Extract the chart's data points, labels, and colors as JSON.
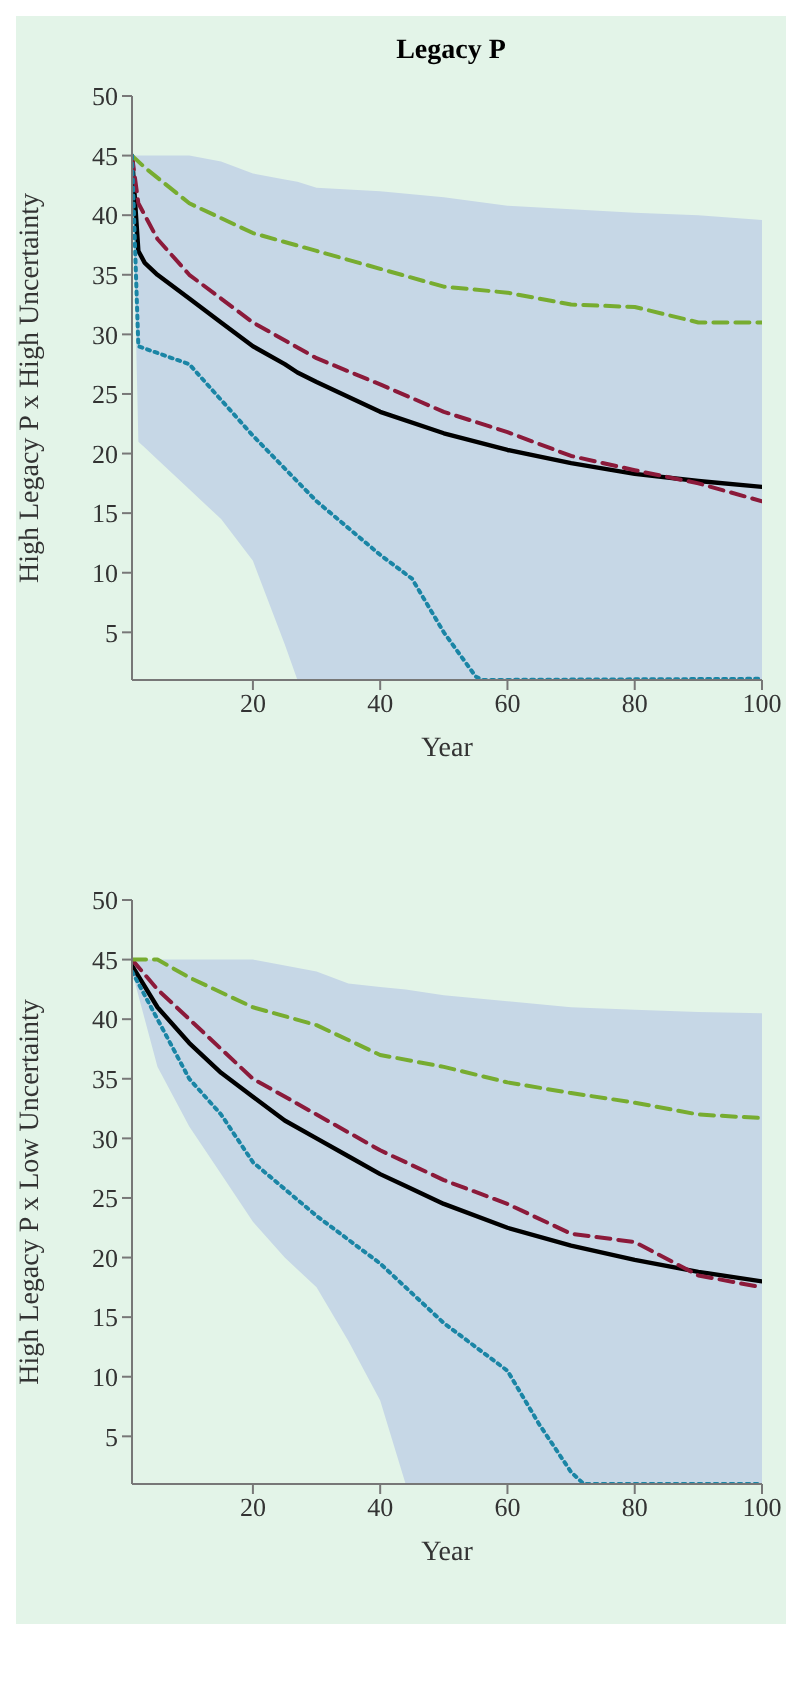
{
  "chart_data": [
    {
      "type": "line",
      "title": "Legacy P",
      "xlabel": "Year",
      "ylabel": "High Legacy P x High Uncertainty",
      "xlim": [
        1,
        100
      ],
      "ylim": [
        1,
        50
      ],
      "xticks": [
        20,
        40,
        60,
        80,
        100
      ],
      "yticks": [
        5,
        10,
        15,
        20,
        25,
        30,
        35,
        40,
        45,
        50
      ],
      "grid": false,
      "legend": false,
      "marker": "none",
      "series": [
        {
          "color": "#000000",
          "line_style": "solid",
          "x": [
            1,
            2,
            3,
            5,
            10,
            15,
            20,
            25,
            27,
            30,
            40,
            50,
            60,
            70,
            80,
            90,
            100
          ],
          "values": [
            45,
            37,
            36,
            35,
            33,
            31,
            29,
            27.5,
            26.8,
            26,
            23.5,
            21.7,
            20.3,
            19.2,
            18.3,
            17.7,
            17.2
          ],
          "lower": [
            45,
            21,
            20.5,
            19.5,
            17,
            14.5,
            11,
            4,
            1,
            1,
            1,
            1,
            1,
            1,
            1,
            1,
            1
          ],
          "upper": [
            45,
            45,
            45,
            45,
            45,
            44.5,
            43.5,
            43,
            42.8,
            42.3,
            42,
            41.5,
            40.8,
            40.5,
            40.2,
            40,
            39.6
          ]
        },
        {
          "color": "#8b1a3a",
          "line_style": "dashed",
          "x": [
            1,
            2,
            5,
            10,
            15,
            20,
            30,
            40,
            50,
            60,
            70,
            80,
            90,
            100
          ],
          "values": [
            45,
            41,
            38,
            35,
            33,
            31,
            28,
            25.8,
            23.5,
            21.8,
            19.8,
            18.6,
            17.5,
            16
          ]
        },
        {
          "color": "#77ac30",
          "line_style": "dashed",
          "x": [
            1,
            3,
            10,
            20,
            30,
            40,
            50,
            60,
            70,
            80,
            90,
            100
          ],
          "values": [
            45,
            44,
            41,
            38.5,
            37,
            35.5,
            34,
            33.5,
            32.5,
            32.3,
            31,
            31
          ]
        },
        {
          "color": "#1a85a5",
          "line_style": "dotted",
          "x": [
            1,
            2,
            10,
            20,
            30,
            40,
            45,
            50,
            55,
            56,
            100
          ],
          "values": [
            45,
            29,
            27.5,
            21.5,
            16,
            11.5,
            9.5,
            5,
            1.3,
            1,
            1.1
          ]
        }
      ]
    },
    {
      "type": "line",
      "xlabel": "Year",
      "ylabel": "High Legacy P x Low Uncertainty",
      "xlim": [
        1,
        100
      ],
      "ylim": [
        1,
        50
      ],
      "xticks": [
        20,
        40,
        60,
        80,
        100
      ],
      "yticks": [
        5,
        10,
        15,
        20,
        25,
        30,
        35,
        40,
        45,
        50
      ],
      "grid": false,
      "legend": false,
      "marker": "none",
      "series": [
        {
          "color": "#000000",
          "line_style": "solid",
          "x": [
            1,
            5,
            10,
            15,
            20,
            25,
            30,
            35,
            40,
            44,
            50,
            60,
            70,
            80,
            90,
            100
          ],
          "values": [
            44.5,
            41,
            38,
            35.5,
            33.5,
            31.5,
            30,
            28.5,
            27,
            26,
            24.5,
            22.5,
            21,
            19.8,
            18.8,
            18
          ],
          "lower": [
            44,
            36,
            31,
            27,
            23,
            20,
            17.5,
            13,
            8,
            1,
            1,
            1,
            1,
            1,
            1,
            1
          ],
          "upper": [
            45,
            45,
            45,
            45,
            45,
            44.5,
            44,
            43,
            42.7,
            42.5,
            42,
            41.5,
            41,
            40.8,
            40.6,
            40.5
          ]
        },
        {
          "color": "#8b1a3a",
          "line_style": "dashed",
          "x": [
            1,
            5,
            10,
            20,
            30,
            40,
            50,
            60,
            70,
            80,
            90,
            100
          ],
          "values": [
            45,
            42.5,
            40,
            35,
            32,
            29,
            26.5,
            24.5,
            22,
            21.3,
            18.5,
            17.5
          ]
        },
        {
          "color": "#77ac30",
          "line_style": "dashed",
          "x": [
            1,
            5,
            10,
            20,
            30,
            40,
            50,
            60,
            70,
            80,
            90,
            100
          ],
          "values": [
            45,
            45,
            43.5,
            41,
            39.5,
            37,
            36,
            34.7,
            33.8,
            33,
            32,
            31.7
          ]
        },
        {
          "color": "#1a85a5",
          "line_style": "dotted",
          "x": [
            1,
            5,
            10,
            15,
            20,
            30,
            40,
            50,
            60,
            65,
            70,
            72,
            100
          ],
          "values": [
            44,
            40,
            35,
            32,
            28,
            23.5,
            19.5,
            14.5,
            10.5,
            6,
            2,
            1,
            1
          ]
        }
      ]
    }
  ]
}
